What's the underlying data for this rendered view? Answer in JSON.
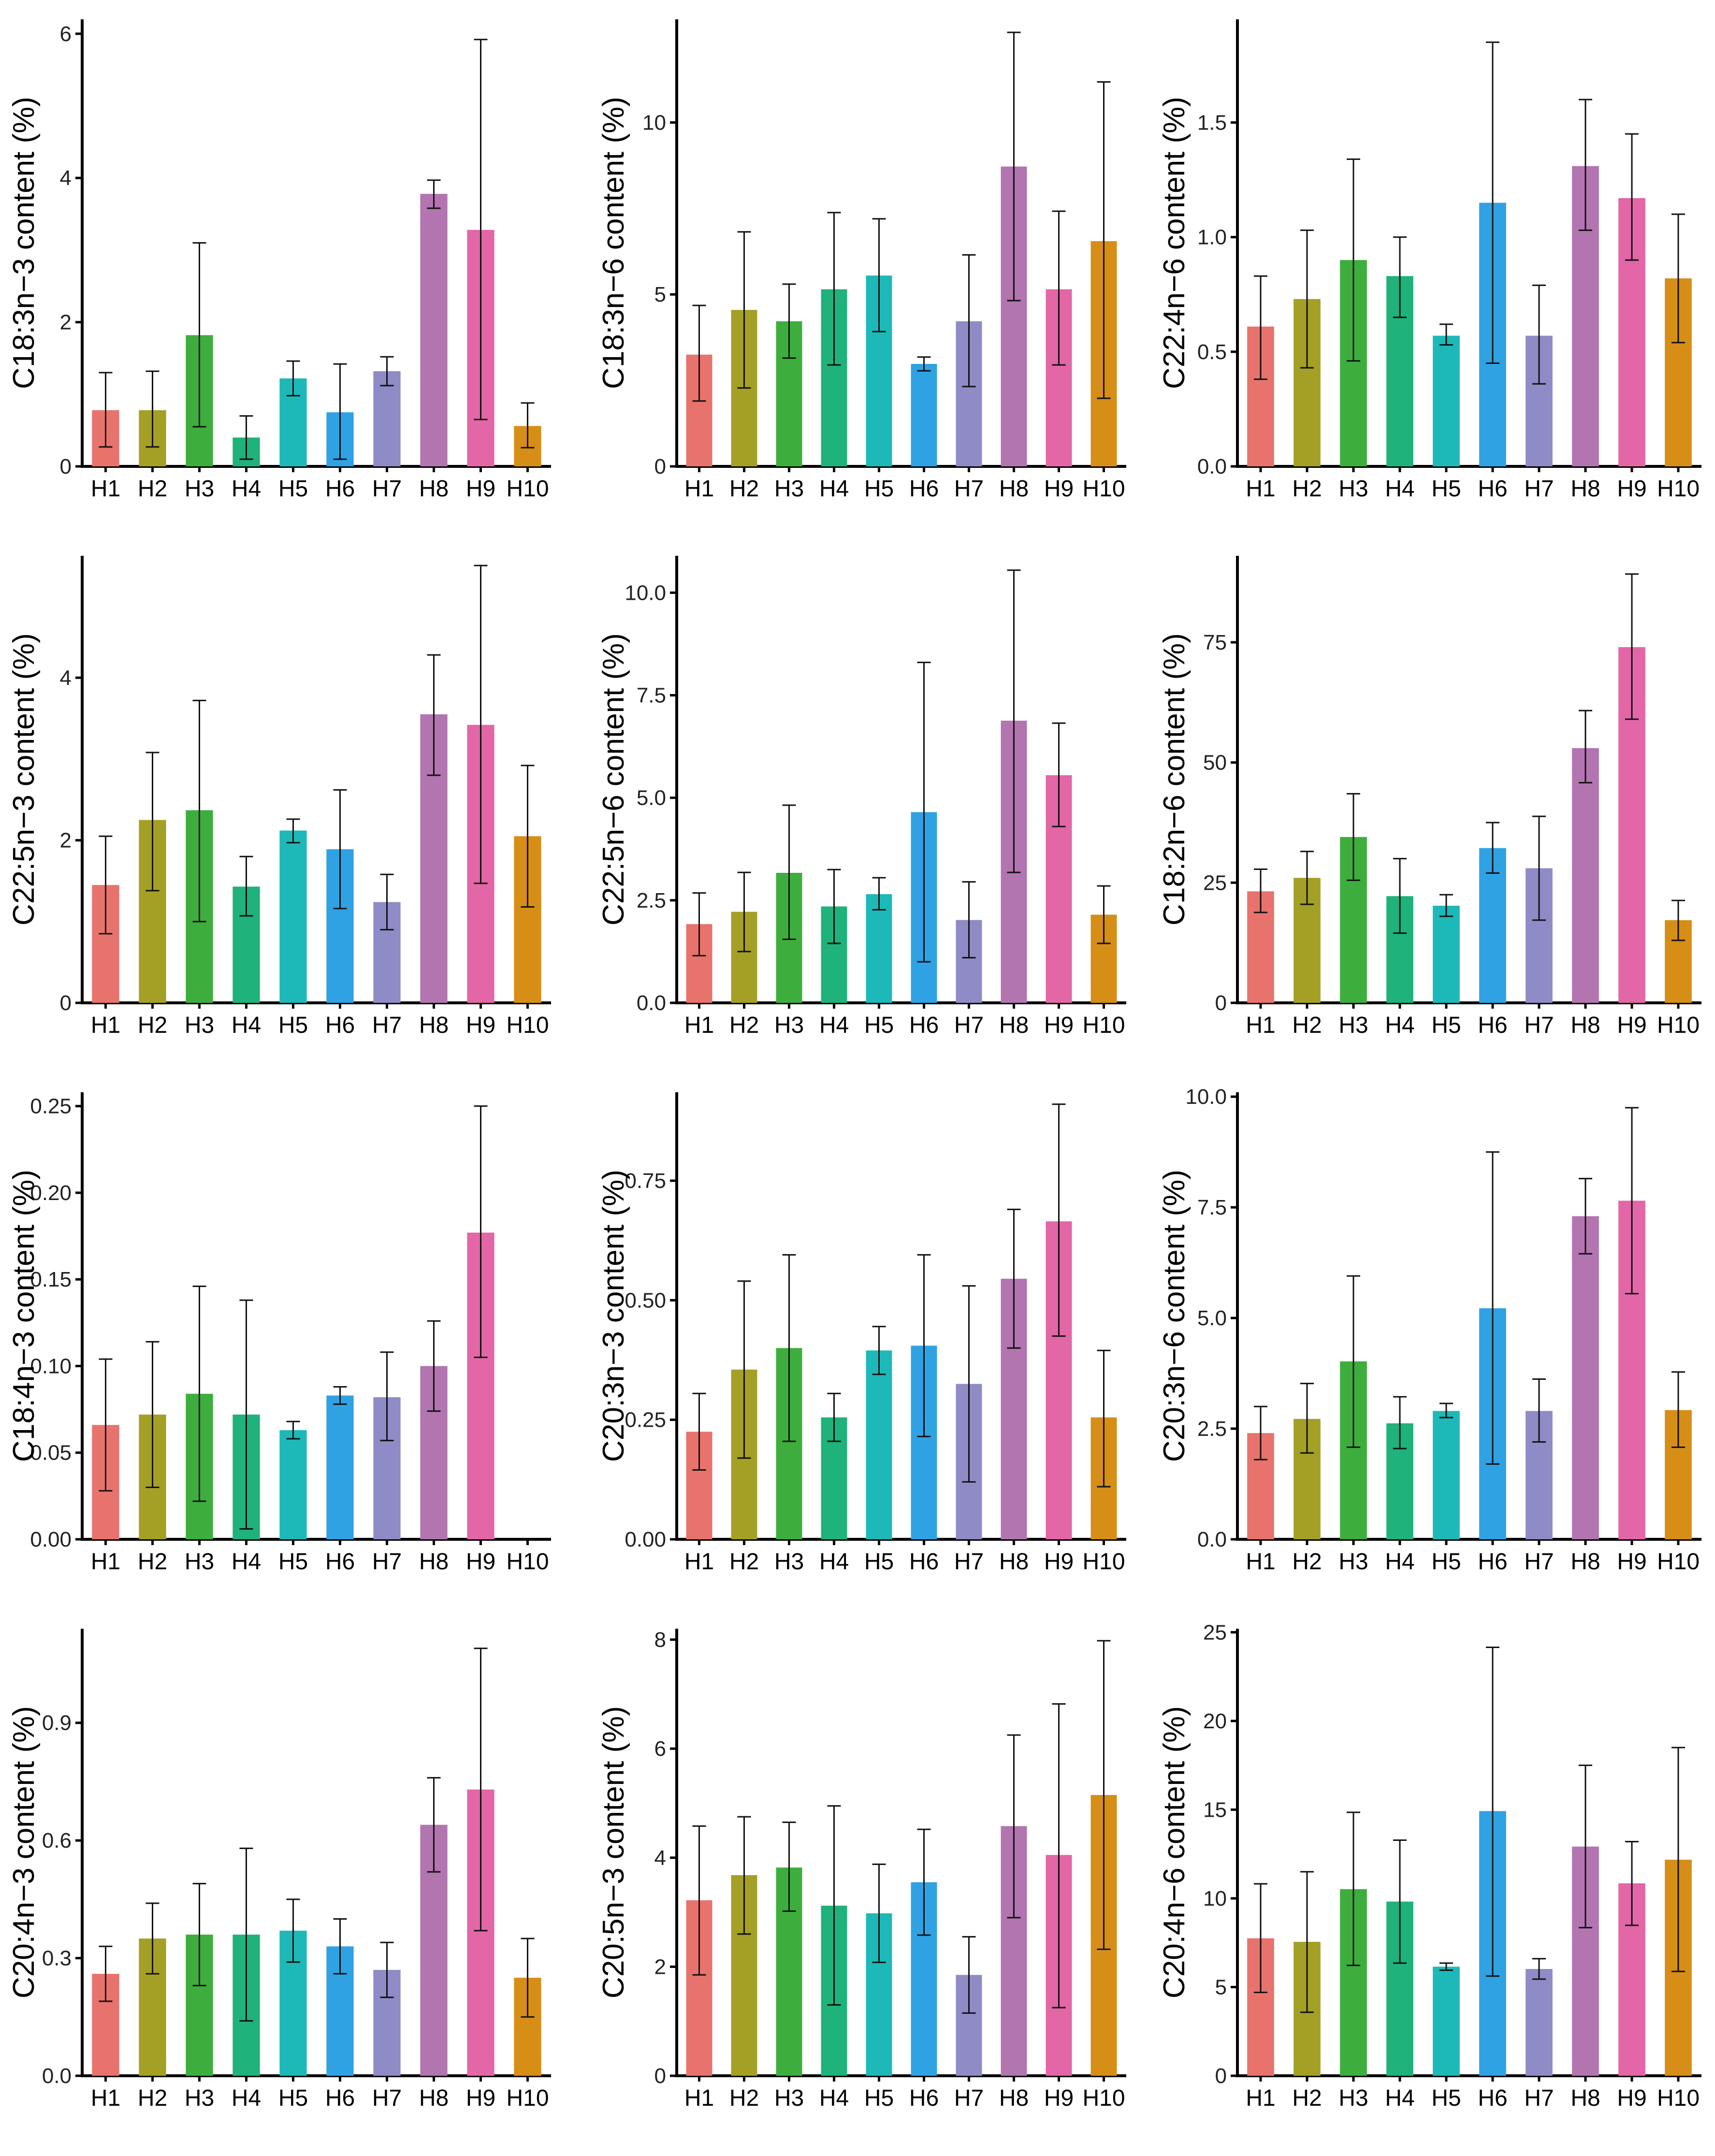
{
  "colors": [
    "#E8736C",
    "#A4A025",
    "#3DAE3D",
    "#1FB27A",
    "#1DB9B8",
    "#2FA2E4",
    "#8E8BC6",
    "#B275B0",
    "#E366A7",
    "#D68E17"
  ],
  "chart_data": [
    {
      "type": "bar",
      "title": "",
      "xlabel": "",
      "ylabel": "C18:3n−3 content (%)",
      "categories": [
        "H1",
        "H2",
        "H3",
        "H4",
        "H5",
        "H6",
        "H7",
        "H8",
        "H9",
        "H10"
      ],
      "values": [
        0.78,
        0.78,
        1.82,
        0.4,
        1.22,
        0.75,
        1.32,
        3.78,
        3.28,
        0.56
      ],
      "error_low": [
        0.27,
        0.27,
        0.55,
        0.1,
        0.98,
        0.1,
        1.12,
        3.58,
        0.65,
        0.26
      ],
      "error_high": [
        1.3,
        1.32,
        3.1,
        0.7,
        1.46,
        1.42,
        1.52,
        3.97,
        5.92,
        0.88
      ],
      "ylim": [
        0,
        6.2
      ],
      "yticks": [
        0,
        2,
        4,
        6
      ],
      "ytick_labels": [
        "0",
        "2",
        "4",
        "6"
      ]
    },
    {
      "type": "bar",
      "title": "",
      "xlabel": "",
      "ylabel": "C18:3n−6 content (%)",
      "categories": [
        "H1",
        "H2",
        "H3",
        "H4",
        "H5",
        "H6",
        "H7",
        "H8",
        "H9",
        "H10"
      ],
      "values": [
        3.25,
        4.55,
        4.22,
        5.15,
        5.55,
        2.98,
        4.22,
        8.72,
        5.15,
        6.55
      ],
      "error_low": [
        1.9,
        2.28,
        3.15,
        2.95,
        3.92,
        2.78,
        2.32,
        4.82,
        2.95,
        1.98
      ],
      "error_high": [
        4.68,
        6.82,
        5.3,
        7.38,
        7.2,
        3.18,
        6.15,
        12.62,
        7.42,
        11.18
      ],
      "ylim": [
        0,
        13
      ],
      "yticks": [
        0,
        5,
        10
      ],
      "ytick_labels": [
        "0",
        "5",
        "10"
      ]
    },
    {
      "type": "bar",
      "title": "",
      "xlabel": "",
      "ylabel": "C22:4n−6 content (%)",
      "categories": [
        "H1",
        "H2",
        "H3",
        "H4",
        "H5",
        "H6",
        "H7",
        "H8",
        "H9",
        "H10"
      ],
      "values": [
        0.61,
        0.73,
        0.9,
        0.83,
        0.57,
        1.15,
        0.57,
        1.31,
        1.17,
        0.82
      ],
      "error_low": [
        0.38,
        0.43,
        0.46,
        0.65,
        0.53,
        0.45,
        0.36,
        1.03,
        0.9,
        0.54
      ],
      "error_high": [
        0.83,
        1.03,
        1.34,
        1.0,
        0.62,
        1.85,
        0.79,
        1.6,
        1.45,
        1.1
      ],
      "ylim": [
        0,
        1.95
      ],
      "yticks": [
        0,
        0.5,
        1.0,
        1.5
      ],
      "ytick_labels": [
        "0.0",
        "0.5",
        "1.0",
        "1.5"
      ]
    },
    {
      "type": "bar",
      "title": "",
      "xlabel": "",
      "ylabel": "C22:5n−3 content (%)",
      "categories": [
        "H1",
        "H2",
        "H3",
        "H4",
        "H5",
        "H6",
        "H7",
        "H8",
        "H9",
        "H10"
      ],
      "values": [
        1.45,
        2.25,
        2.37,
        1.43,
        2.12,
        1.89,
        1.24,
        3.55,
        3.42,
        2.05
      ],
      "error_low": [
        0.85,
        1.38,
        1.0,
        1.07,
        1.97,
        1.16,
        0.9,
        2.8,
        1.47,
        1.18
      ],
      "error_high": [
        2.05,
        3.08,
        3.72,
        1.8,
        2.26,
        2.62,
        1.58,
        4.28,
        5.38,
        2.92
      ],
      "ylim": [
        0,
        5.5
      ],
      "yticks": [
        0,
        2,
        4
      ],
      "ytick_labels": [
        "0",
        "2",
        "4"
      ]
    },
    {
      "type": "bar",
      "title": "",
      "xlabel": "",
      "ylabel": "C22:5n−6 content (%)",
      "categories": [
        "H1",
        "H2",
        "H3",
        "H4",
        "H5",
        "H6",
        "H7",
        "H8",
        "H9",
        "H10"
      ],
      "values": [
        1.92,
        2.22,
        3.17,
        2.35,
        2.65,
        4.65,
        2.02,
        6.88,
        5.55,
        2.15
      ],
      "error_low": [
        1.15,
        1.25,
        1.55,
        1.45,
        2.27,
        1.0,
        1.1,
        3.18,
        4.3,
        1.45
      ],
      "error_high": [
        2.68,
        3.18,
        4.82,
        3.25,
        3.05,
        8.3,
        2.95,
        10.55,
        6.82,
        2.85
      ],
      "ylim": [
        0,
        10.9
      ],
      "yticks": [
        0,
        2.5,
        5.0,
        7.5,
        10.0
      ],
      "ytick_labels": [
        "0.0",
        "2.5",
        "5.0",
        "7.5",
        "10.0"
      ]
    },
    {
      "type": "bar",
      "title": "",
      "xlabel": "",
      "ylabel": "C18:2n−6 content (%)",
      "categories": [
        "H1",
        "H2",
        "H3",
        "H4",
        "H5",
        "H6",
        "H7",
        "H8",
        "H9",
        "H10"
      ],
      "values": [
        23.2,
        26.0,
        34.5,
        22.2,
        20.2,
        32.2,
        28.0,
        53.0,
        74.0,
        17.2
      ],
      "error_low": [
        18.8,
        20.5,
        25.5,
        14.5,
        18.0,
        27.0,
        17.2,
        45.8,
        59.0,
        13.0
      ],
      "error_high": [
        27.8,
        31.5,
        43.5,
        30.0,
        22.5,
        37.5,
        38.8,
        60.8,
        89.2,
        21.3
      ],
      "ylim": [
        0,
        93
      ],
      "yticks": [
        0,
        25,
        50,
        75
      ],
      "ytick_labels": [
        "0",
        "25",
        "50",
        "75"
      ]
    },
    {
      "type": "bar",
      "title": "",
      "xlabel": "",
      "ylabel": "C18:4n−3 content (%)",
      "categories": [
        "H1",
        "H2",
        "H3",
        "H4",
        "H5",
        "H6",
        "H7",
        "H8",
        "H9",
        "H10"
      ],
      "values": [
        0.066,
        0.072,
        0.084,
        0.072,
        0.063,
        0.083,
        0.082,
        0.1,
        0.177,
        0.0
      ],
      "error_low": [
        0.028,
        0.03,
        0.022,
        0.006,
        0.058,
        0.078,
        0.057,
        0.074,
        0.105,
        0.0
      ],
      "error_high": [
        0.104,
        0.114,
        0.146,
        0.138,
        0.068,
        0.088,
        0.108,
        0.126,
        0.25,
        0.0
      ],
      "ylim": [
        0,
        0.258
      ],
      "yticks": [
        0,
        0.05,
        0.1,
        0.15,
        0.2,
        0.25
      ],
      "ytick_labels": [
        "0.00",
        "0.05",
        "0.10",
        "0.15",
        "0.20",
        "0.25"
      ]
    },
    {
      "type": "bar",
      "title": "",
      "xlabel": "",
      "ylabel": "C20:3n−3 content (%)",
      "categories": [
        "H1",
        "H2",
        "H3",
        "H4",
        "H5",
        "H6",
        "H7",
        "H8",
        "H9",
        "H10"
      ],
      "values": [
        0.225,
        0.355,
        0.4,
        0.255,
        0.395,
        0.405,
        0.325,
        0.545,
        0.665,
        0.255
      ],
      "error_low": [
        0.145,
        0.17,
        0.205,
        0.205,
        0.345,
        0.215,
        0.12,
        0.4,
        0.425,
        0.11
      ],
      "error_high": [
        0.305,
        0.54,
        0.595,
        0.305,
        0.445,
        0.595,
        0.53,
        0.69,
        0.91,
        0.395
      ],
      "ylim": [
        0,
        0.935
      ],
      "yticks": [
        0,
        0.25,
        0.5,
        0.75
      ],
      "ytick_labels": [
        "0.00",
        "0.25",
        "0.50",
        "0.75"
      ]
    },
    {
      "type": "bar",
      "title": "",
      "xlabel": "",
      "ylabel": "C20:3n−6 content (%)",
      "categories": [
        "H1",
        "H2",
        "H3",
        "H4",
        "H5",
        "H6",
        "H7",
        "H8",
        "H9",
        "H10"
      ],
      "values": [
        2.4,
        2.72,
        4.02,
        2.62,
        2.9,
        5.22,
        2.9,
        7.3,
        7.65,
        2.92
      ],
      "error_low": [
        1.8,
        1.95,
        2.08,
        2.05,
        2.75,
        1.7,
        2.2,
        6.45,
        5.55,
        2.08
      ],
      "error_high": [
        3.0,
        3.52,
        5.95,
        3.22,
        3.07,
        8.75,
        3.62,
        8.15,
        9.75,
        3.78
      ],
      "ylim": [
        0,
        10.1
      ],
      "yticks": [
        0,
        2.5,
        5.0,
        7.5,
        10.0
      ],
      "ytick_labels": [
        "0.0",
        "2.5",
        "5.0",
        "7.5",
        "10.0"
      ]
    },
    {
      "type": "bar",
      "title": "",
      "xlabel": "",
      "ylabel": "C20:4n−3 content (%)",
      "categories": [
        "H1",
        "H2",
        "H3",
        "H4",
        "H5",
        "H6",
        "H7",
        "H8",
        "H9",
        "H10"
      ],
      "values": [
        0.26,
        0.35,
        0.36,
        0.36,
        0.37,
        0.33,
        0.27,
        0.64,
        0.73,
        0.25
      ],
      "error_low": [
        0.19,
        0.26,
        0.23,
        0.14,
        0.29,
        0.26,
        0.2,
        0.52,
        0.37,
        0.15
      ],
      "error_high": [
        0.33,
        0.44,
        0.49,
        0.58,
        0.45,
        0.4,
        0.34,
        0.76,
        1.09,
        0.35
      ],
      "ylim": [
        0,
        1.14
      ],
      "yticks": [
        0,
        0.3,
        0.6,
        0.9
      ],
      "ytick_labels": [
        "0.0",
        "0.3",
        "0.6",
        "0.9"
      ]
    },
    {
      "type": "bar",
      "title": "",
      "xlabel": "",
      "ylabel": "C20:5n−3 content (%)",
      "categories": [
        "H1",
        "H2",
        "H3",
        "H4",
        "H5",
        "H6",
        "H7",
        "H8",
        "H9",
        "H10"
      ],
      "values": [
        3.22,
        3.68,
        3.82,
        3.12,
        2.98,
        3.55,
        1.85,
        4.58,
        4.05,
        5.15
      ],
      "error_low": [
        1.85,
        2.6,
        3.02,
        1.3,
        2.08,
        2.58,
        1.15,
        2.9,
        1.25,
        2.32
      ],
      "error_high": [
        4.58,
        4.75,
        4.65,
        4.95,
        3.88,
        4.52,
        2.55,
        6.25,
        6.82,
        7.98
      ],
      "ylim": [
        0,
        8.2
      ],
      "yticks": [
        0,
        2,
        4,
        6,
        8
      ],
      "ytick_labels": [
        "0",
        "2",
        "4",
        "6",
        "8"
      ]
    },
    {
      "type": "bar",
      "title": "",
      "xlabel": "",
      "ylabel": "C20:4n−6 content (%)",
      "categories": [
        "H1",
        "H2",
        "H3",
        "H4",
        "H5",
        "H6",
        "H7",
        "H8",
        "H9",
        "H10"
      ],
      "values": [
        7.75,
        7.55,
        10.52,
        9.82,
        6.15,
        14.92,
        6.02,
        12.92,
        10.85,
        12.18
      ],
      "error_low": [
        4.7,
        3.58,
        6.22,
        6.35,
        5.95,
        5.62,
        5.45,
        8.35,
        8.48,
        5.88
      ],
      "error_high": [
        10.82,
        11.5,
        14.85,
        13.28,
        6.35,
        24.15,
        6.6,
        17.5,
        13.2,
        18.5
      ],
      "ylim": [
        0,
        25.2
      ],
      "yticks": [
        0,
        5,
        10,
        15,
        20,
        25
      ],
      "ytick_labels": [
        "0",
        "5",
        "10",
        "15",
        "20",
        "25"
      ]
    }
  ]
}
